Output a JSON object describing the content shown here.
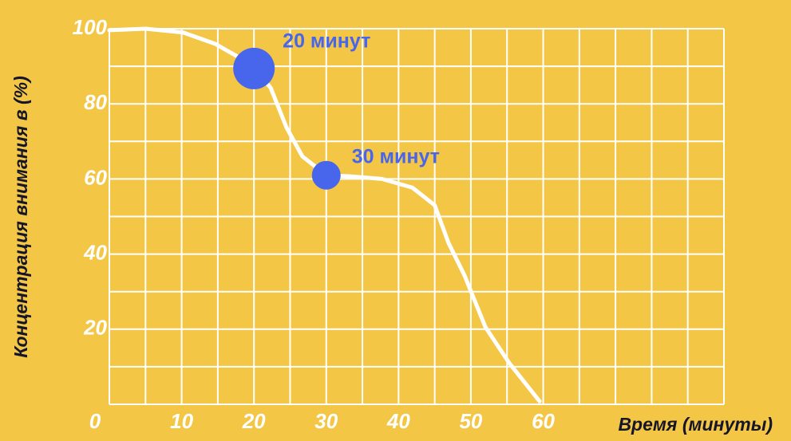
{
  "chart_data": {
    "type": "line",
    "x_label": "Время (минуты)",
    "y_label": "Концентрация внимания в (%)",
    "xlim": [
      0,
      85
    ],
    "ylim": [
      0,
      100
    ],
    "xticks": [
      0,
      10,
      20,
      30,
      40,
      50,
      60
    ],
    "yticks": [
      20,
      40,
      60,
      80,
      100
    ],
    "xgrid": [
      0,
      5,
      10,
      15,
      20,
      25,
      30,
      35,
      40,
      45,
      50,
      55,
      60,
      65,
      70,
      75,
      80,
      85
    ],
    "ygrid": [
      0,
      10,
      20,
      30,
      40,
      50,
      60,
      70,
      80,
      90,
      100
    ],
    "grid_color": "#ffffff",
    "series": [
      {
        "color": "#ffffff",
        "x": [
          0,
          5,
          10.2,
          14.6,
          17.9,
          20,
          22.3,
          24.5,
          26.7,
          30,
          33.3,
          37.7,
          41.9,
          45,
          46.9,
          49.1,
          52,
          55.3,
          59.5
        ],
        "values": [
          99.6,
          100,
          99,
          96,
          92.4,
          89.4,
          84.3,
          73.7,
          66,
          61,
          60.7,
          60,
          57.7,
          53,
          43,
          34.4,
          20.6,
          11,
          0.8
        ]
      }
    ],
    "annotations": [
      {
        "x": 20,
        "y": 89.4,
        "text": "20 минут",
        "color": "#4766ec"
      },
      {
        "x": 30,
        "y": 61,
        "text": "30 минут",
        "color": "#4766ec"
      }
    ]
  }
}
